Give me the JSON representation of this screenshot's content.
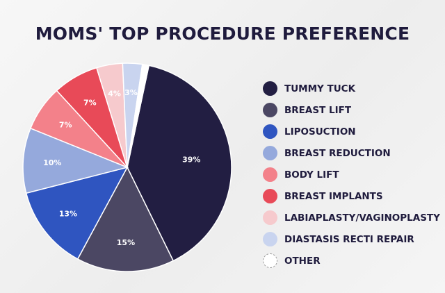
{
  "title": "MOMS' TOP PROCEDURE PREFERENCE",
  "chart_data": {
    "type": "pie",
    "title": "MOMS' TOP PROCEDURE PREFERENCE",
    "slices": [
      {
        "label": "TUMMY TUCK",
        "value": 39,
        "display": "39%",
        "color": "#221e42"
      },
      {
        "label": "BREAST LIFT",
        "value": 15,
        "display": "15%",
        "color": "#4b4763"
      },
      {
        "label": "LIPOSUCTION",
        "value": 13,
        "display": "13%",
        "color": "#2f55c0"
      },
      {
        "label": "BREAST REDUCTION",
        "value": 10,
        "display": "10%",
        "color": "#95a9dc"
      },
      {
        "label": "BODY LIFT",
        "value": 7,
        "display": "7%",
        "color": "#f3818a"
      },
      {
        "label": "BREAST IMPLANTS",
        "value": 7,
        "display": "7%",
        "color": "#e84a58"
      },
      {
        "label": "LABIAPLASTY/VAGINOPLASTY",
        "value": 4,
        "display": "4%",
        "color": "#f6cacd"
      },
      {
        "label": "DIASTASIS RECTI REPAIR",
        "value": 3,
        "display": "3%",
        "color": "#c9d4ef"
      },
      {
        "label": "OTHER",
        "value": 1,
        "display": "",
        "color": "#ffffff"
      }
    ],
    "start_angle_deg": 12,
    "direction": "clockwise",
    "legend_position": "right"
  }
}
